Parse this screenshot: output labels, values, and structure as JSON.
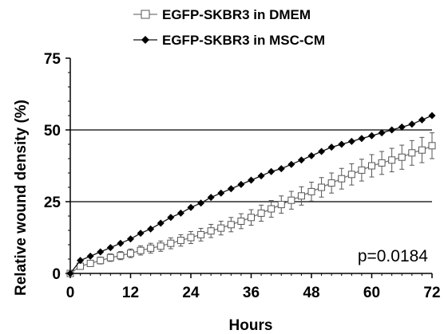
{
  "chart_data": {
    "type": "line",
    "xlabel": "Hours",
    "ylabel": "Relative wound density (%)",
    "xlim": [
      0,
      72
    ],
    "ylim": [
      0,
      75
    ],
    "x_ticks": [
      0,
      12,
      24,
      36,
      48,
      60,
      72
    ],
    "y_ticks": [
      0,
      25,
      50,
      75
    ],
    "x_tick_labels": [
      "0",
      "12",
      "24",
      "36",
      "48",
      "60",
      "72"
    ],
    "y_tick_labels": [
      "0",
      "25",
      "50",
      "75"
    ],
    "gridlines_y": [
      25,
      50
    ],
    "legend": {
      "placement": "top"
    },
    "annotation": "p=0.0184",
    "series": [
      {
        "name": "EGFP-SKBR3 in DMEM",
        "marker": "open-square",
        "color": "#777777",
        "x": [
          0,
          2,
          4,
          6,
          8,
          10,
          12,
          14,
          16,
          18,
          20,
          22,
          24,
          26,
          28,
          30,
          32,
          34,
          36,
          38,
          40,
          42,
          44,
          46,
          48,
          50,
          52,
          54,
          56,
          58,
          60,
          62,
          64,
          66,
          68,
          70,
          72
        ],
        "y": [
          0,
          2.5,
          3.5,
          4.5,
          5.5,
          6.2,
          7,
          8,
          8.8,
          9.5,
          10.5,
          11.5,
          12.5,
          13.5,
          14.8,
          15.8,
          17,
          18.2,
          19.5,
          21,
          22.5,
          24,
          25.5,
          27,
          28.5,
          30,
          31.5,
          33,
          34.5,
          36,
          37.5,
          38.5,
          39.5,
          40.5,
          42,
          43,
          44.5
        ],
        "error": [
          0,
          0.8,
          1,
          1.2,
          1.3,
          1.4,
          1.5,
          1.6,
          1.7,
          1.8,
          1.9,
          2,
          2.1,
          2.2,
          2.3,
          2.4,
          2.5,
          2.6,
          2.7,
          2.8,
          2.9,
          3,
          3.1,
          3.2,
          3.3,
          3.4,
          3.5,
          3.6,
          3.7,
          3.8,
          3.9,
          4,
          4.1,
          4.2,
          4.3,
          4.4,
          4.5
        ]
      },
      {
        "name": "EGFP-SKBR3 in MSC-CM",
        "marker": "filled-diamond",
        "color": "#111111",
        "x": [
          0,
          2,
          4,
          6,
          8,
          10,
          12,
          14,
          16,
          18,
          20,
          22,
          24,
          26,
          28,
          30,
          32,
          34,
          36,
          38,
          40,
          42,
          44,
          46,
          48,
          50,
          52,
          54,
          56,
          58,
          60,
          62,
          64,
          66,
          68,
          70,
          72
        ],
        "y": [
          0,
          4.5,
          6,
          7.5,
          9,
          10.5,
          12,
          14,
          15.5,
          17.5,
          19.5,
          21,
          23,
          24.5,
          26.5,
          28,
          29.5,
          31,
          32.5,
          34,
          35.5,
          36.5,
          38,
          39.5,
          41,
          42.5,
          44,
          45,
          46,
          47,
          48,
          49,
          50,
          51,
          52,
          53.5,
          55
        ]
      }
    ]
  }
}
